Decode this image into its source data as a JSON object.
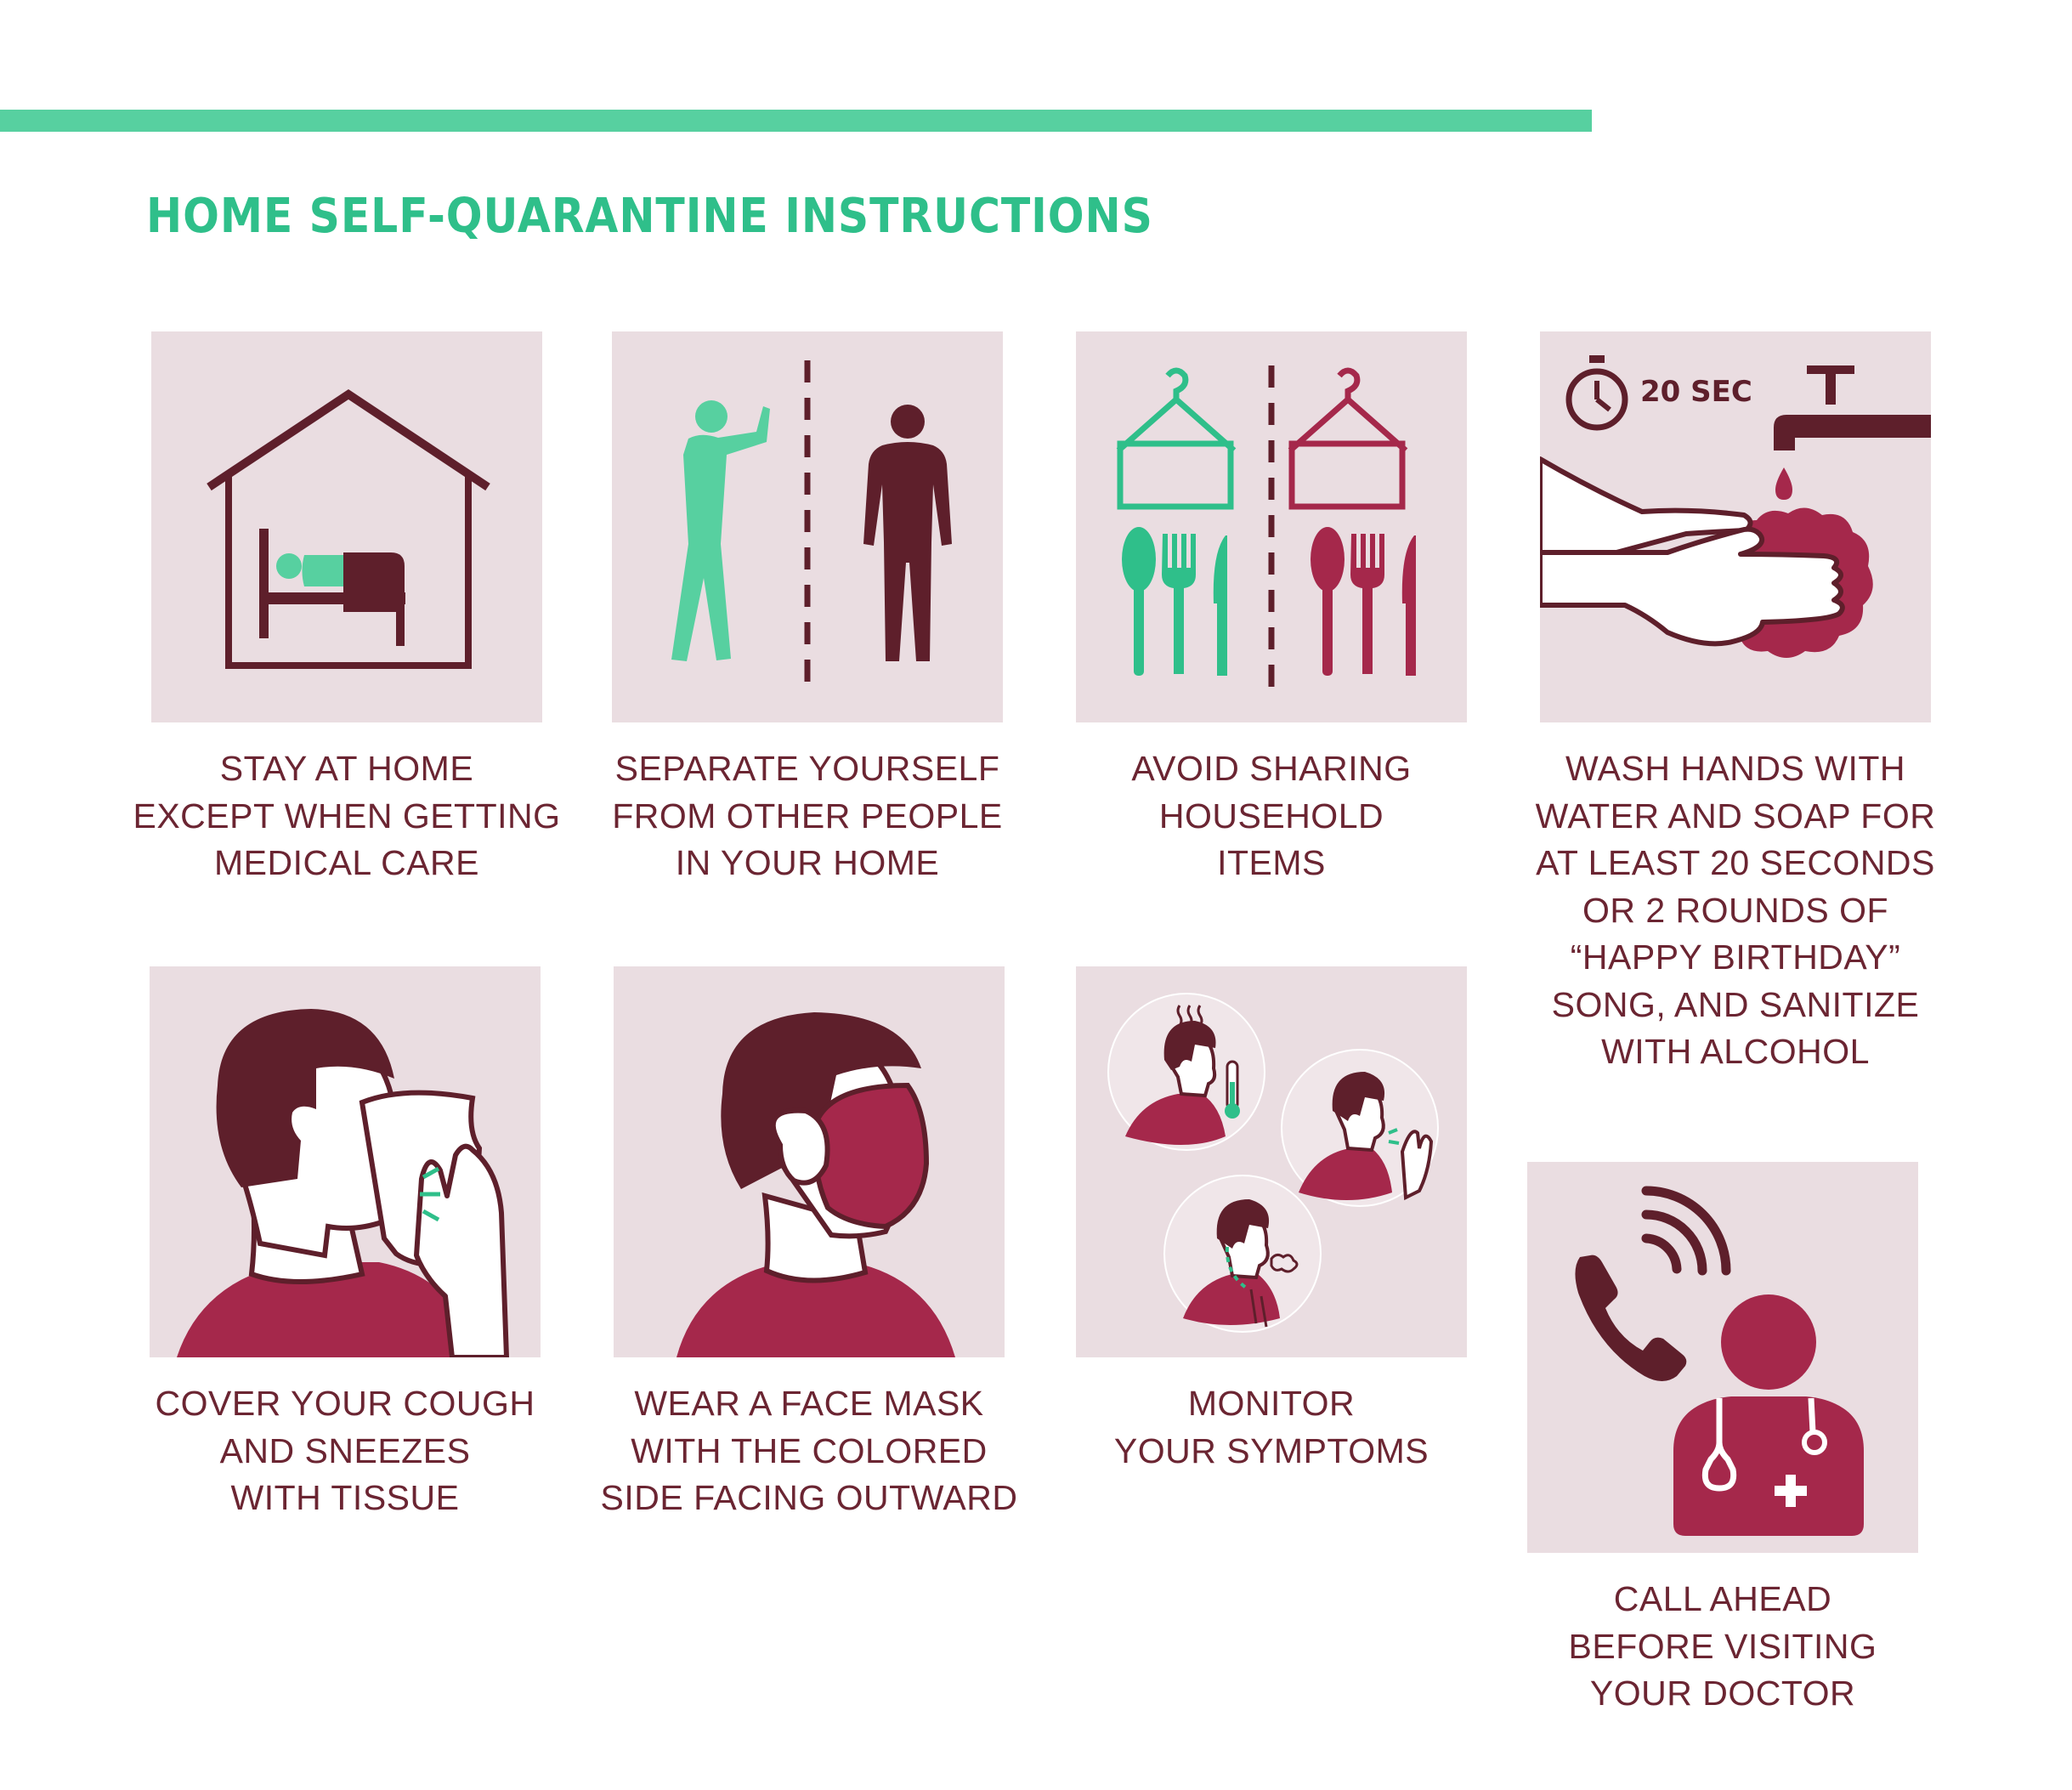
{
  "header": {
    "title": "HOME SELF-QUARANTINE INSTRUCTIONS"
  },
  "colors": {
    "accent_green": "#57d0a0",
    "title_green": "#2fbf8a",
    "maroon": "#5e1f2b",
    "crimson": "#a5284b",
    "tile_bg": "#eadde1",
    "caption_text": "#6b2532"
  },
  "tiles": [
    {
      "icon": "house-bed-icon",
      "lines": [
        "STAY AT HOME",
        "EXCEPT WHEN GETTING",
        "MEDICAL CARE"
      ]
    },
    {
      "icon": "social-distance-icon",
      "lines": [
        "SEPARATE YOURSELF",
        "FROM OTHER PEOPLE",
        "IN YOUR HOME"
      ]
    },
    {
      "icon": "household-items-icon",
      "lines": [
        "AVOID SHARING",
        "HOUSEHOLD",
        "ITEMS"
      ]
    },
    {
      "icon": "hand-washing-icon",
      "timer": "20 SEC",
      "lines": [
        "WASH HANDS WITH",
        "WATER AND SOAP FOR",
        "AT LEAST 20 SECONDS",
        "OR 2 ROUNDS OF",
        "“HAPPY BIRTHDAY”",
        "SONG, AND SANITIZE",
        "WITH ALCOHOL"
      ]
    },
    {
      "icon": "cough-tissue-icon",
      "lines": [
        "COVER YOUR COUGH",
        "AND SNEEZES",
        "WITH TISSUE"
      ]
    },
    {
      "icon": "face-mask-icon",
      "lines": [
        "WEAR A FACE MASK",
        "WITH THE COLORED",
        "SIDE FACING OUTWARD"
      ]
    },
    {
      "icon": "symptoms-icon",
      "lines": [
        "MONITOR",
        "YOUR SYMPTOMS"
      ]
    },
    {
      "icon": "call-doctor-icon",
      "lines": [
        "CALL AHEAD",
        "BEFORE VISITING",
        "YOUR DOCTOR"
      ]
    }
  ]
}
